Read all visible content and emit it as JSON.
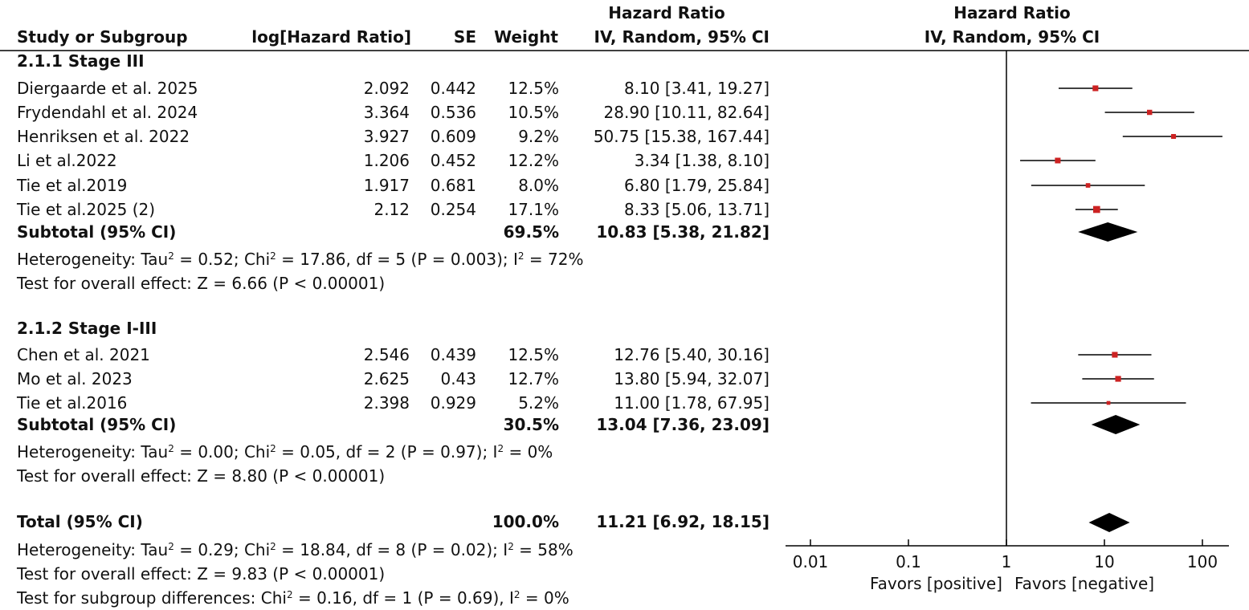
{
  "header": {
    "hr_group_title": "Hazard Ratio",
    "plot_group_title": "Hazard Ratio",
    "study_col": "Study or Subgroup",
    "loghr_col": "log[Hazard Ratio]",
    "se_col": "SE",
    "weight_col": "Weight",
    "hr_method": "IV, Random, 95% CI",
    "plot_method": "IV, Random, 95% CI"
  },
  "subgroups": [
    {
      "title": "2.1.1 Stage III",
      "studies": [
        {
          "name": "Diergaarde et al. 2025",
          "loghr": "2.092",
          "se": "0.442",
          "weight": "12.5%",
          "ci_text": "8.10 [3.41, 19.27]",
          "hr": 8.1,
          "lo": 3.41,
          "hi": 19.27,
          "weight_pct": 12.5
        },
        {
          "name": "Frydendahl et al. 2024",
          "loghr": "3.364",
          "se": "0.536",
          "weight": "10.5%",
          "ci_text": "28.90 [10.11, 82.64]",
          "hr": 28.9,
          "lo": 10.11,
          "hi": 82.64,
          "weight_pct": 10.5
        },
        {
          "name": "Henriksen et al. 2022",
          "loghr": "3.927",
          "se": "0.609",
          "weight": "9.2%",
          "ci_text": "50.75 [15.38, 167.44]",
          "hr": 50.75,
          "lo": 15.38,
          "hi": 167.44,
          "weight_pct": 9.2
        },
        {
          "name": "Li et al.2022",
          "loghr": "1.206",
          "se": "0.452",
          "weight": "12.2%",
          "ci_text": "3.34 [1.38, 8.10]",
          "hr": 3.34,
          "lo": 1.38,
          "hi": 8.1,
          "weight_pct": 12.2
        },
        {
          "name": "Tie et al.2019",
          "loghr": "1.917",
          "se": "0.681",
          "weight": "8.0%",
          "ci_text": "6.80 [1.79, 25.84]",
          "hr": 6.8,
          "lo": 1.79,
          "hi": 25.84,
          "weight_pct": 8.0
        },
        {
          "name": "Tie et al.2025 (2)",
          "loghr": "2.12",
          "se": "0.254",
          "weight": "17.1%",
          "ci_text": "8.33 [5.06, 13.71]",
          "hr": 8.33,
          "lo": 5.06,
          "hi": 13.71,
          "weight_pct": 17.1
        }
      ],
      "subtotal": {
        "label": "Subtotal (95% CI)",
        "weight": "69.5%",
        "ci_text": "10.83 [5.38, 21.82]",
        "hr": 10.83,
        "lo": 5.38,
        "hi": 21.82
      },
      "heterogeneity": {
        "prefix": "Heterogeneity: Tau",
        "mid": " = 0.52; Chi",
        "tail": " = 17.86, df = 5 (P = 0.003); I",
        "end": " = 72%"
      },
      "overall": "Test for overall effect: Z = 6.66 (P < 0.00001)"
    },
    {
      "title": "2.1.2 Stage I-III",
      "studies": [
        {
          "name": "Chen et al. 2021",
          "loghr": "2.546",
          "se": "0.439",
          "weight": "12.5%",
          "ci_text": "12.76 [5.40, 30.16]",
          "hr": 12.76,
          "lo": 5.4,
          "hi": 30.16,
          "weight_pct": 12.5
        },
        {
          "name": "Mo et al. 2023",
          "loghr": "2.625",
          "se": "0.43",
          "weight": "12.7%",
          "ci_text": "13.80 [5.94, 32.07]",
          "hr": 13.8,
          "lo": 5.94,
          "hi": 32.07,
          "weight_pct": 12.7
        },
        {
          "name": "Tie et al.2016",
          "loghr": "2.398",
          "se": "0.929",
          "weight": "5.2%",
          "ci_text": "11.00 [1.78, 67.95]",
          "hr": 11.0,
          "lo": 1.78,
          "hi": 67.95,
          "weight_pct": 5.2
        }
      ],
      "subtotal": {
        "label": "Subtotal (95% CI)",
        "weight": "30.5%",
        "ci_text": "13.04 [7.36, 23.09]",
        "hr": 13.04,
        "lo": 7.36,
        "hi": 23.09
      },
      "heterogeneity": {
        "prefix": "Heterogeneity: Tau",
        "mid": " = 0.00; Chi",
        "tail": " = 0.05, df = 2 (P = 0.97); I",
        "end": " = 0%"
      },
      "overall": "Test for overall effect: Z = 8.80 (P < 0.00001)"
    }
  ],
  "total": {
    "label": "Total (95% CI)",
    "weight": "100.0%",
    "ci_text": "11.21 [6.92, 18.15]",
    "hr": 11.21,
    "lo": 6.92,
    "hi": 18.15,
    "heterogeneity": {
      "prefix": "Heterogeneity: Tau",
      "mid": " = 0.29; Chi",
      "tail": " = 18.84, df = 8 (P = 0.02); I",
      "end": " = 58%"
    },
    "overall": "Test for overall effect: Z = 9.83 (P < 0.00001)",
    "subgroup_diff": {
      "prefix": "Test for subgroup differences: Chi",
      "tail": " = 0.16, df = 1 (P = 0.69), I",
      "end": " = 0%"
    }
  },
  "sup2": "2",
  "axis": {
    "scale": "log",
    "ticks": [
      0.01,
      0.1,
      1,
      10,
      100
    ],
    "tick_labels": [
      "0.01",
      "0.1",
      "1",
      "10",
      "100"
    ],
    "favors_left": "Favors [positive]",
    "favors_right": "Favors [negative]"
  },
  "colors": {
    "point": "#cc2222",
    "diamond": "#000000",
    "line": "#000000"
  },
  "chart_data": {
    "type": "forest",
    "scale": "log",
    "xlim": [
      0.01,
      100
    ],
    "xlabel_left": "Favors [positive]",
    "xlabel_right": "Favors [negative]",
    "series": [
      {
        "name": "2.1.1 Stage III",
        "studies": [
          "Diergaarde et al. 2025",
          "Frydendahl et al. 2024",
          "Henriksen et al. 2022",
          "Li et al.2022",
          "Tie et al.2019",
          "Tie et al.2025 (2)"
        ],
        "hr": [
          8.1,
          28.9,
          50.75,
          3.34,
          6.8,
          8.33
        ],
        "lo": [
          3.41,
          10.11,
          15.38,
          1.38,
          1.79,
          5.06
        ],
        "hi": [
          19.27,
          82.64,
          167.44,
          8.1,
          25.84,
          13.71
        ],
        "subtotal": {
          "hr": 10.83,
          "lo": 5.38,
          "hi": 21.82
        }
      },
      {
        "name": "2.1.2 Stage I-III",
        "studies": [
          "Chen et al. 2021",
          "Mo et al. 2023",
          "Tie et al.2016"
        ],
        "hr": [
          12.76,
          13.8,
          11.0
        ],
        "lo": [
          5.4,
          5.94,
          1.78
        ],
        "hi": [
          30.16,
          32.07,
          67.95
        ],
        "subtotal": {
          "hr": 13.04,
          "lo": 7.36,
          "hi": 23.09
        }
      }
    ],
    "total": {
      "hr": 11.21,
      "lo": 6.92,
      "hi": 18.15
    }
  }
}
